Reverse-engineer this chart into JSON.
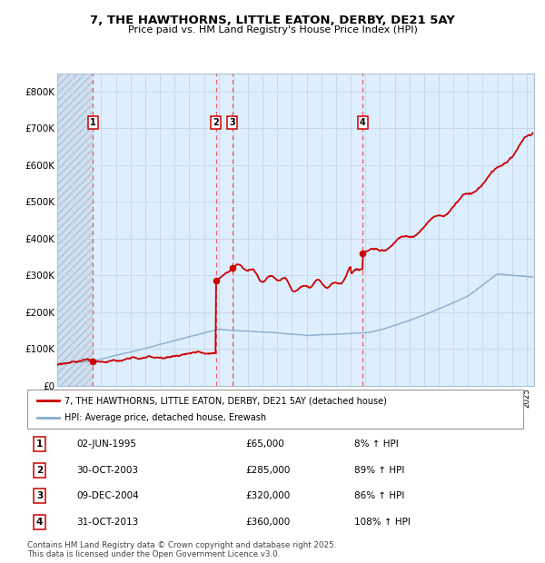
{
  "title": "7, THE HAWTHORNS, LITTLE EATON, DERBY, DE21 5AY",
  "subtitle": "Price paid vs. HM Land Registry's House Price Index (HPI)",
  "ylim": [
    0,
    850000
  ],
  "yticks": [
    0,
    100000,
    200000,
    300000,
    400000,
    500000,
    600000,
    700000,
    800000
  ],
  "ytick_labels": [
    "£0",
    "£100K",
    "£200K",
    "£300K",
    "£400K",
    "£500K",
    "£600K",
    "£700K",
    "£800K"
  ],
  "transactions": [
    {
      "num": 1,
      "date_str": "02-JUN-1995",
      "date_x": 1995.42,
      "price": 65000,
      "hpi_pct": "8% ↑ HPI"
    },
    {
      "num": 2,
      "date_str": "30-OCT-2003",
      "date_x": 2003.83,
      "price": 285000,
      "hpi_pct": "89% ↑ HPI"
    },
    {
      "num": 3,
      "date_str": "09-DEC-2004",
      "date_x": 2004.94,
      "price": 320000,
      "hpi_pct": "86% ↑ HPI"
    },
    {
      "num": 4,
      "date_str": "31-OCT-2013",
      "date_x": 2013.83,
      "price": 360000,
      "hpi_pct": "108% ↑ HPI"
    }
  ],
  "xlim": [
    1993.0,
    2025.5
  ],
  "legend_red": "7, THE HAWTHORNS, LITTLE EATON, DERBY, DE21 5AY (detached house)",
  "legend_blue": "HPI: Average price, detached house, Erewash",
  "footer": "Contains HM Land Registry data © Crown copyright and database right 2025.\nThis data is licensed under the Open Government Licence v3.0.",
  "red_color": "#cc0000",
  "blue_color": "#88aacc",
  "grid_color": "#c8d8e8",
  "dashed_color": "#ee4444",
  "bg_color": "#ddeeff"
}
